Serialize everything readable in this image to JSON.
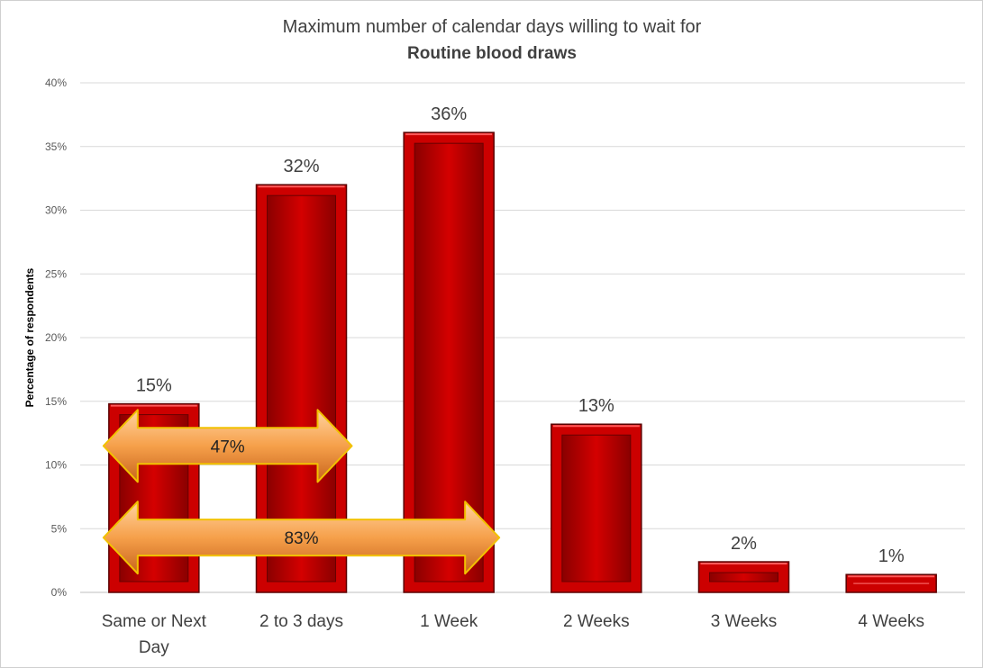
{
  "chart_data": {
    "type": "bar",
    "title": "Maximum number of calendar days willing to wait for",
    "subtitle": "Routine blood draws",
    "ylabel": "Percentage of respondents",
    "xlabel": "",
    "ylim": [
      0,
      40
    ],
    "yticks": [
      "0%",
      "5%",
      "10%",
      "15%",
      "20%",
      "25%",
      "30%",
      "35%",
      "40%"
    ],
    "grid": true,
    "legend": "none",
    "categories": [
      [
        "Same or Next",
        "Day"
      ],
      [
        "2 to 3 days"
      ],
      [
        "1 Week"
      ],
      [
        "2 Weeks"
      ],
      [
        "3 Weeks"
      ],
      [
        "4 Weeks"
      ]
    ],
    "values": [
      14.8,
      32,
      36.1,
      13.2,
      2.4,
      1.4
    ],
    "data_labels": [
      "15%",
      "32%",
      "36%",
      "13%",
      "2%",
      "1%"
    ],
    "bar_color": "#cc0000",
    "annotations": [
      {
        "label": "47%",
        "from_category": 0,
        "to_category": 1,
        "y": 11.5
      },
      {
        "label": "83%",
        "from_category": 0,
        "to_category": 2,
        "y": 4.3
      }
    ],
    "arrow_color": "#f4a050"
  }
}
